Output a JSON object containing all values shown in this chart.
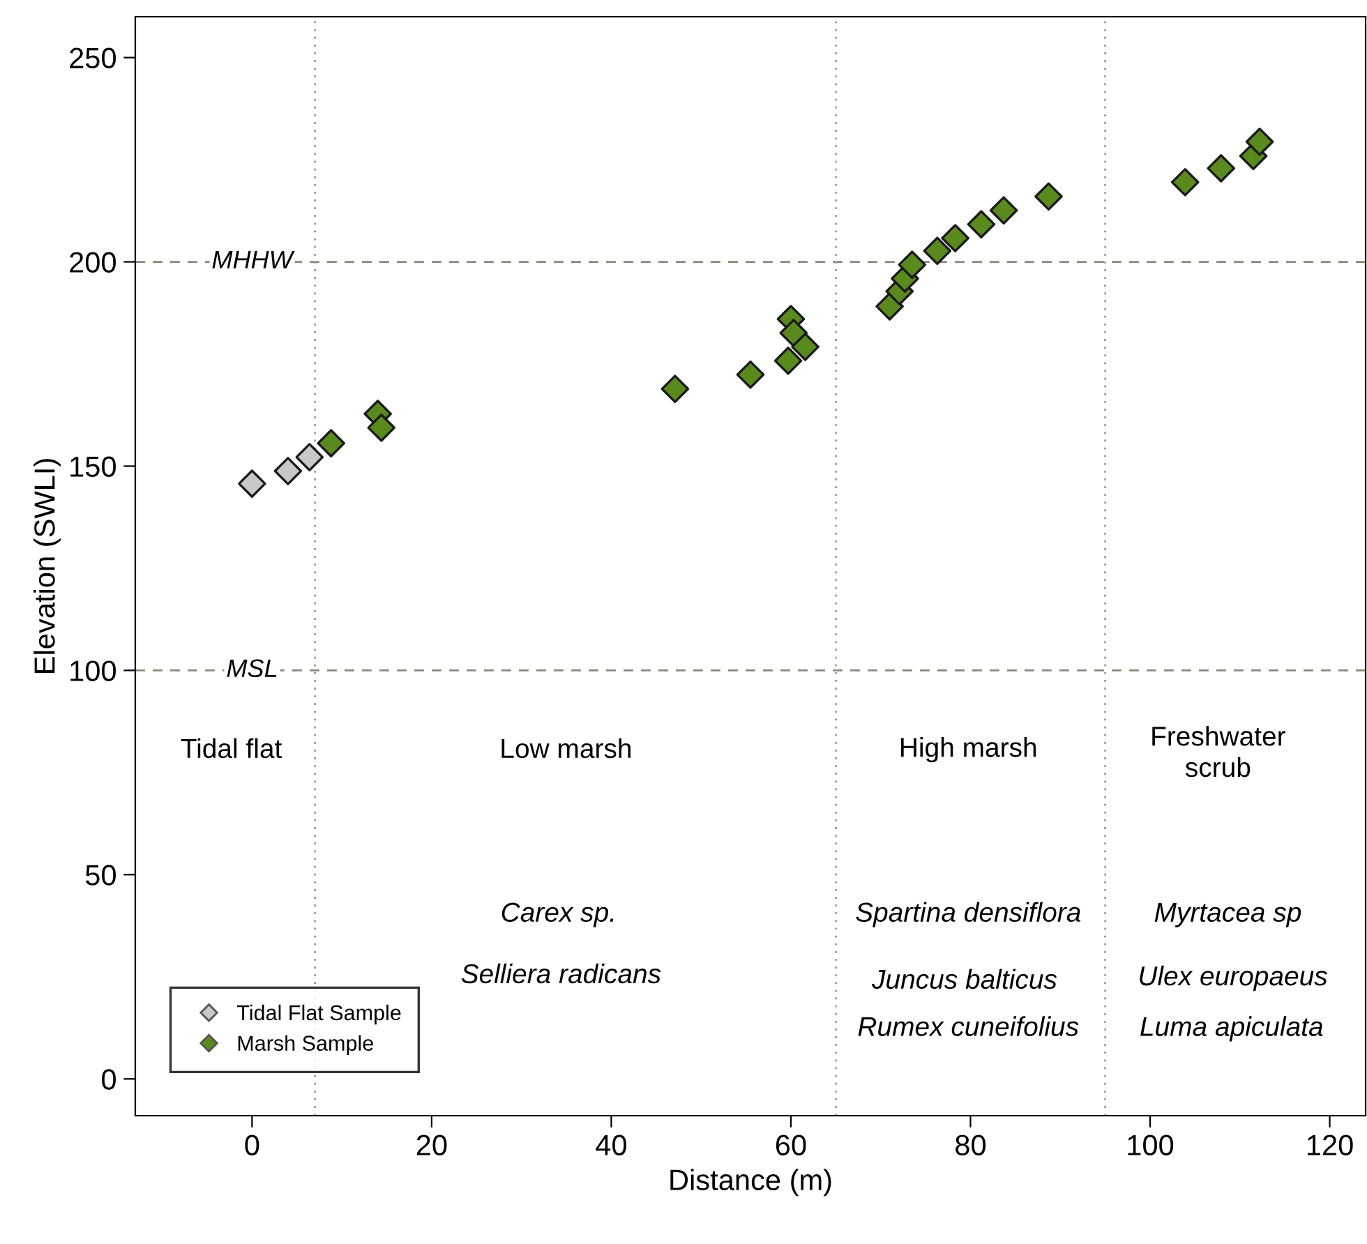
{
  "chart_data": {
    "type": "scatter",
    "xlabel": "Distance (m)",
    "ylabel": "Elevation (SWLI)",
    "xlim": [
      -13,
      124
    ],
    "ylim": [
      -9,
      260
    ],
    "xticks": [
      0,
      20,
      40,
      60,
      80,
      100,
      120
    ],
    "yticks": [
      0,
      50,
      100,
      150,
      200,
      250
    ],
    "marker": "diamond",
    "grid": false,
    "legend": "bottom left",
    "series": [
      {
        "name": "Tidal Flat Sample",
        "color": "#c8c8c8",
        "x": [
          0,
          4.0,
          6.4
        ],
        "values": [
          145.7,
          148.8,
          152.2
        ]
      },
      {
        "name": "Marsh Sample",
        "color": "#5a8a1e",
        "x": [
          8.8,
          14.0,
          14.4,
          47.1,
          55.5,
          59.7,
          60.0,
          60.3,
          61.6,
          71.0,
          72.1,
          72.7,
          73.5,
          76.3,
          78.3,
          81.2,
          83.7,
          88.7,
          103.9,
          107.9,
          111.5,
          112.2
        ],
        "values": [
          155.6,
          162.8,
          159.4,
          168.9,
          172.4,
          175.8,
          186.0,
          182.6,
          179.2,
          189.1,
          192.8,
          195.9,
          199.3,
          202.7,
          205.8,
          209.2,
          212.6,
          216.0,
          219.5,
          222.9,
          225.9,
          229.4
        ]
      }
    ],
    "ref_lines": [
      {
        "axis": "y",
        "value": 200,
        "label": "MHHW",
        "color": "#8a8a7a",
        "line_style": "dashed"
      },
      {
        "axis": "y",
        "value": 100,
        "label": "MSL",
        "color": "#8a8a7a",
        "line_style": "dashed"
      },
      {
        "axis": "x",
        "value": 7,
        "color": "#9a9a8a",
        "line_style": "dotted"
      },
      {
        "axis": "x",
        "value": 65,
        "color": "#9a9a8a",
        "line_style": "dotted"
      },
      {
        "axis": "x",
        "value": 95,
        "color": "#9a9a8a",
        "line_style": "dotted"
      }
    ],
    "annotations": [
      "Tidal flat",
      "Low marsh",
      "High marsh",
      "Freshwater\nscrub",
      "Carex sp.",
      "Selliera radicans",
      "Spartina densiflora",
      "Juncus balticus",
      "Rumex cuneifolius",
      "Myrtacea sp",
      "Ulex europaeus",
      "Luma apiculata"
    ]
  }
}
